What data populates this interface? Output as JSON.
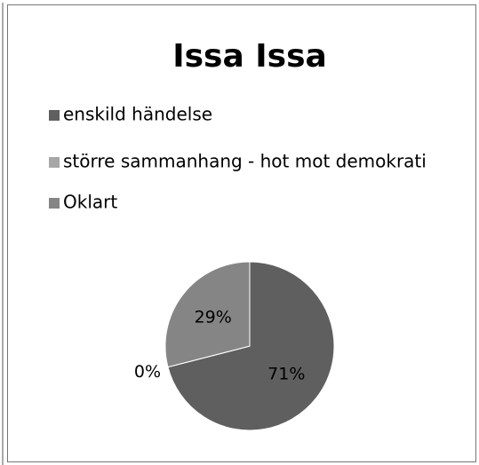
{
  "chart_data": {
    "type": "pie",
    "title": "Issa Issa",
    "categories": [
      "enskild händelse",
      "större sammanhang - hot mot demokrati",
      "Oklart"
    ],
    "values": [
      71,
      0,
      29
    ],
    "value_labels": [
      "71%",
      "0%",
      "29%"
    ],
    "colors": [
      "#5f5f5f",
      "#a6a6a6",
      "#858585"
    ],
    "legend": "top-left"
  }
}
